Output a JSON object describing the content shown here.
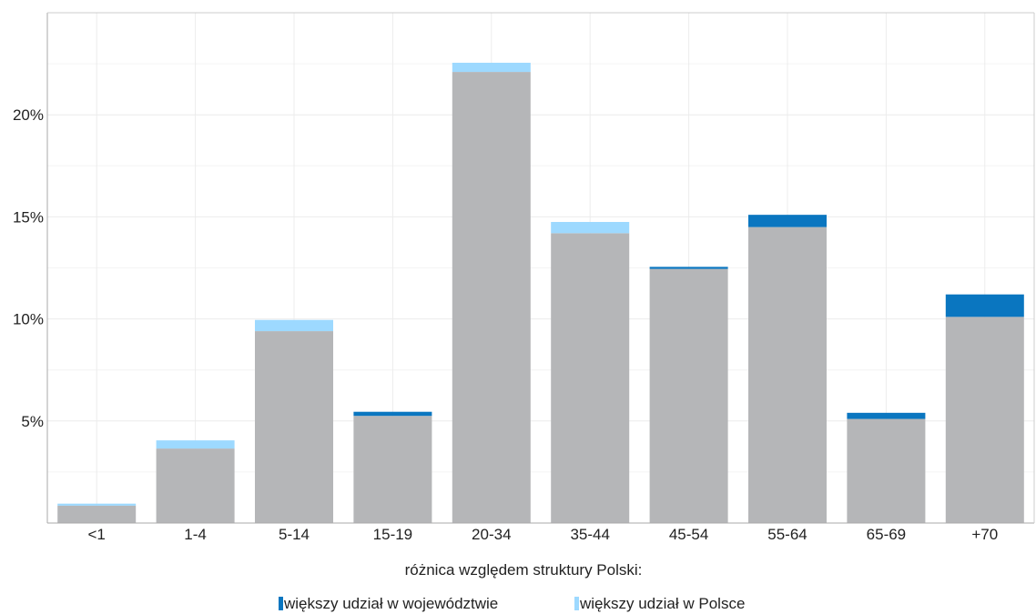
{
  "chart_data": {
    "type": "bar",
    "stacked": true,
    "categories": [
      "<1",
      "1-4",
      "5-14",
      "15-19",
      "20-34",
      "35-44",
      "45-54",
      "55-64",
      "65-69",
      "+70"
    ],
    "base_values": [
      0.85,
      3.65,
      9.4,
      5.25,
      22.1,
      14.2,
      12.45,
      14.5,
      5.1,
      10.1
    ],
    "series": [
      {
        "name": "większy udział w województwie",
        "values": [
          0,
          0,
          0,
          0.2,
          0,
          0,
          0.1,
          0.6,
          0.3,
          1.1
        ],
        "color": "#0a76c0"
      },
      {
        "name": "większy udział w Polsce",
        "values": [
          0.1,
          0.4,
          0.55,
          0,
          0.45,
          0.55,
          0,
          0,
          0,
          0
        ],
        "color": "#9dd9ff"
      }
    ],
    "base_color": "#b5b6b8",
    "yticks": [
      5,
      10,
      15,
      20
    ],
    "ytick_labels": [
      "5%",
      "10%",
      "15%",
      "20%"
    ],
    "ylim": [
      0,
      25
    ],
    "grid": true,
    "legend_title": "różnica względem struktury Polski:",
    "legend_position": "bottom"
  }
}
